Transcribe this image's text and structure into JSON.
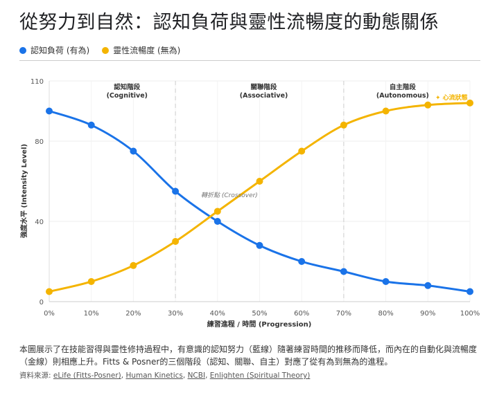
{
  "title": "從努力到自然：認知負荷與靈性流暢度的動態關係",
  "colors": {
    "blue": "#1a73e8",
    "gold": "#f4b400"
  },
  "chart_data": {
    "type": "line",
    "x": [
      "0%",
      "10%",
      "20%",
      "30%",
      "40%",
      "50%",
      "60%",
      "70%",
      "80%",
      "90%",
      "100%"
    ],
    "series": [
      {
        "name": "認知負荷 (有為)",
        "color": "#1a73e8",
        "values": [
          95,
          88,
          75,
          55,
          40,
          28,
          20,
          15,
          10,
          8,
          5
        ]
      },
      {
        "name": "靈性流暢度 (無為)",
        "color": "#f4b400",
        "values": [
          5,
          10,
          18,
          30,
          45,
          60,
          75,
          88,
          95,
          98,
          99
        ]
      }
    ],
    "xlabel": "練習進程 / 時間 (Progression)",
    "ylabel": "強度水平 (Intensity Level)",
    "ylim": [
      0,
      110
    ],
    "yticks": [
      "0",
      "40",
      "80",
      "110"
    ],
    "legend": "top-left",
    "grid": true,
    "stage_dividers": [
      "30%",
      "70%"
    ],
    "stages": [
      {
        "name": "認知階段",
        "sub": "(Cognitive)"
      },
      {
        "name": "關聯階段",
        "sub": "(Associative)"
      },
      {
        "name": "自主階段",
        "sub": "(Autonomous)"
      }
    ],
    "annotations": {
      "crossover": "轉折點 (Crossover)",
      "flow": "✦ 心流狀態"
    }
  },
  "description": "本圖展示了在技能習得與靈性修持過程中，有意識的認知努力（藍線）隨著練習時間的推移而降低，而內在的自動化與流暢度（金線）則相應上升。Fitts & Posner的三個階段（認知、關聯、自主）對應了從有為到無為的進程。",
  "sources": {
    "label": "資料來源: ",
    "links": [
      "eLife (Fitts-Posner)",
      "Human Kinetics",
      "NCBI",
      "Enlighten (Spiritual Theory)"
    ]
  }
}
